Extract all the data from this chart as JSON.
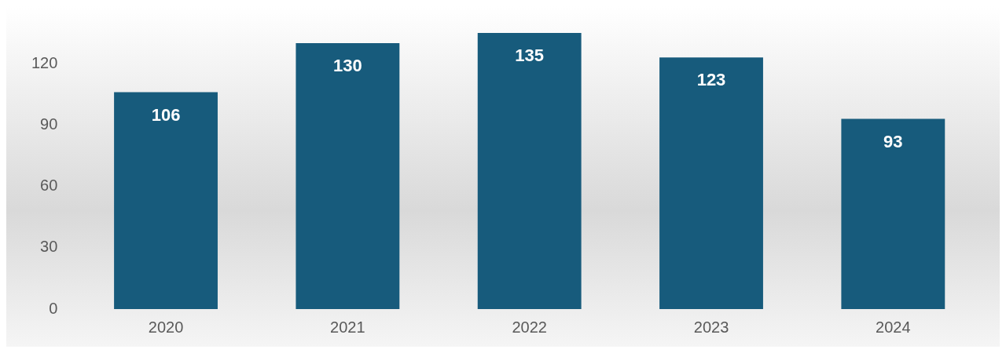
{
  "chart_data": {
    "type": "bar",
    "categories": [
      "2020",
      "2021",
      "2022",
      "2023",
      "2024"
    ],
    "values": [
      106,
      130,
      135,
      123,
      93
    ],
    "color": "#175b7c",
    "ylim": [
      0,
      135
    ],
    "yticks": [
      0,
      30,
      60,
      90,
      120
    ],
    "grid": false,
    "legend": false,
    "data_labels": true
  }
}
